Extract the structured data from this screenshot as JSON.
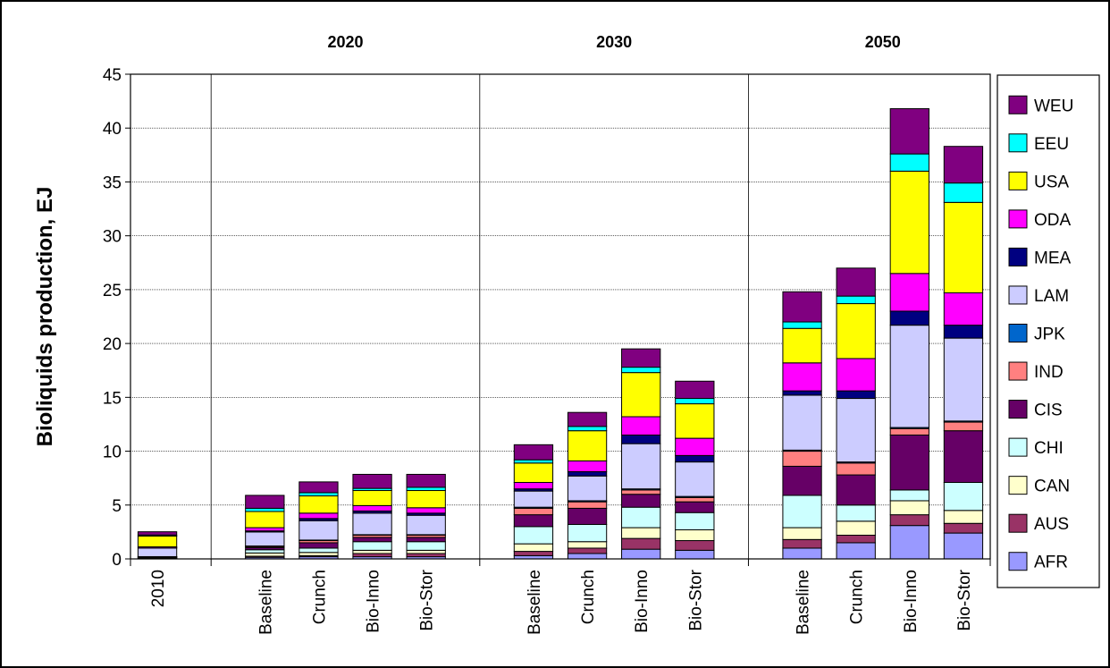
{
  "chart_data": {
    "type": "bar",
    "stacked": true,
    "ylabel": "Bioliquids production, EJ",
    "xlabel": "",
    "ylim": [
      0,
      45
    ],
    "yticks": [
      0,
      5,
      10,
      15,
      20,
      25,
      30,
      35,
      40,
      45
    ],
    "grid": true,
    "legend_position": "right",
    "groups": [
      {
        "label": "",
        "start": 0,
        "end": 0
      },
      {
        "label": "2020",
        "start": 1,
        "end": 4
      },
      {
        "label": "2030",
        "start": 5,
        "end": 8
      },
      {
        "label": "2050",
        "start": 9,
        "end": 12
      }
    ],
    "categories": [
      "2010",
      "Baseline",
      "Crunch",
      "Bio-Inno",
      "Bio-Stor",
      "Baseline",
      "Crunch",
      "Bio-Inno",
      "Bio-Stor",
      "Baseline",
      "Crunch",
      "Bio-Inno",
      "Bio-Stor"
    ],
    "series": [
      {
        "name": "AFR",
        "color": "#9999ff",
        "values": [
          0.05,
          0.15,
          0.2,
          0.2,
          0.2,
          0.3,
          0.5,
          0.9,
          0.8,
          1.0,
          1.5,
          3.1,
          2.4
        ]
      },
      {
        "name": "AUS",
        "color": "#993366",
        "values": [
          0.02,
          0.1,
          0.1,
          0.3,
          0.3,
          0.4,
          0.5,
          1.0,
          0.9,
          0.8,
          0.7,
          1.0,
          0.9
        ]
      },
      {
        "name": "CAN",
        "color": "#ffffcc",
        "values": [
          0.03,
          0.3,
          0.3,
          0.3,
          0.3,
          0.7,
          0.6,
          1.0,
          1.0,
          1.1,
          1.3,
          1.3,
          1.2
        ]
      },
      {
        "name": "CHI",
        "color": "#ccffff",
        "values": [
          0.05,
          0.3,
          0.4,
          0.8,
          0.8,
          1.6,
          1.6,
          1.9,
          1.6,
          3.0,
          1.5,
          1.0,
          2.6
        ]
      },
      {
        "name": "CIS",
        "color": "#660066",
        "values": [
          0.03,
          0.2,
          0.5,
          0.4,
          0.4,
          1.1,
          1.5,
          1.2,
          1.0,
          2.7,
          2.8,
          5.1,
          4.8
        ]
      },
      {
        "name": "IND",
        "color": "#ff8080",
        "values": [
          0.02,
          0.1,
          0.2,
          0.2,
          0.2,
          0.6,
          0.6,
          0.4,
          0.4,
          1.4,
          1.1,
          0.6,
          0.8
        ]
      },
      {
        "name": "JPK",
        "color": "#0066cc",
        "values": [
          0.01,
          0.05,
          0.05,
          0.05,
          0.05,
          0.1,
          0.1,
          0.1,
          0.1,
          0.1,
          0.1,
          0.1,
          0.1
        ]
      },
      {
        "name": "LAM",
        "color": "#ccccff",
        "values": [
          0.8,
          1.3,
          1.8,
          2.0,
          1.8,
          1.5,
          2.3,
          4.2,
          3.2,
          5.1,
          5.9,
          9.5,
          7.7
        ]
      },
      {
        "name": "MEA",
        "color": "#000080",
        "values": [
          0.01,
          0.1,
          0.2,
          0.2,
          0.2,
          0.2,
          0.4,
          0.8,
          0.6,
          0.4,
          0.7,
          1.3,
          1.2
        ]
      },
      {
        "name": "ODA",
        "color": "#ff00ff",
        "values": [
          0.1,
          0.3,
          0.5,
          0.5,
          0.5,
          0.6,
          1.0,
          1.7,
          1.6,
          2.6,
          3.0,
          3.5,
          3.0
        ]
      },
      {
        "name": "USA",
        "color": "#ffff00",
        "values": [
          1.0,
          1.5,
          1.6,
          1.4,
          1.6,
          1.8,
          2.8,
          4.1,
          3.2,
          3.2,
          5.1,
          9.5,
          8.4
        ]
      },
      {
        "name": "EEU",
        "color": "#00ffff",
        "values": [
          0.1,
          0.3,
          0.3,
          0.2,
          0.3,
          0.3,
          0.4,
          0.5,
          0.5,
          0.6,
          0.7,
          1.6,
          1.8
        ]
      },
      {
        "name": "WEU",
        "color": "#800080",
        "values": [
          0.3,
          1.2,
          1.0,
          1.3,
          1.2,
          1.4,
          1.3,
          1.7,
          1.6,
          2.8,
          2.6,
          4.2,
          3.4
        ]
      }
    ]
  }
}
